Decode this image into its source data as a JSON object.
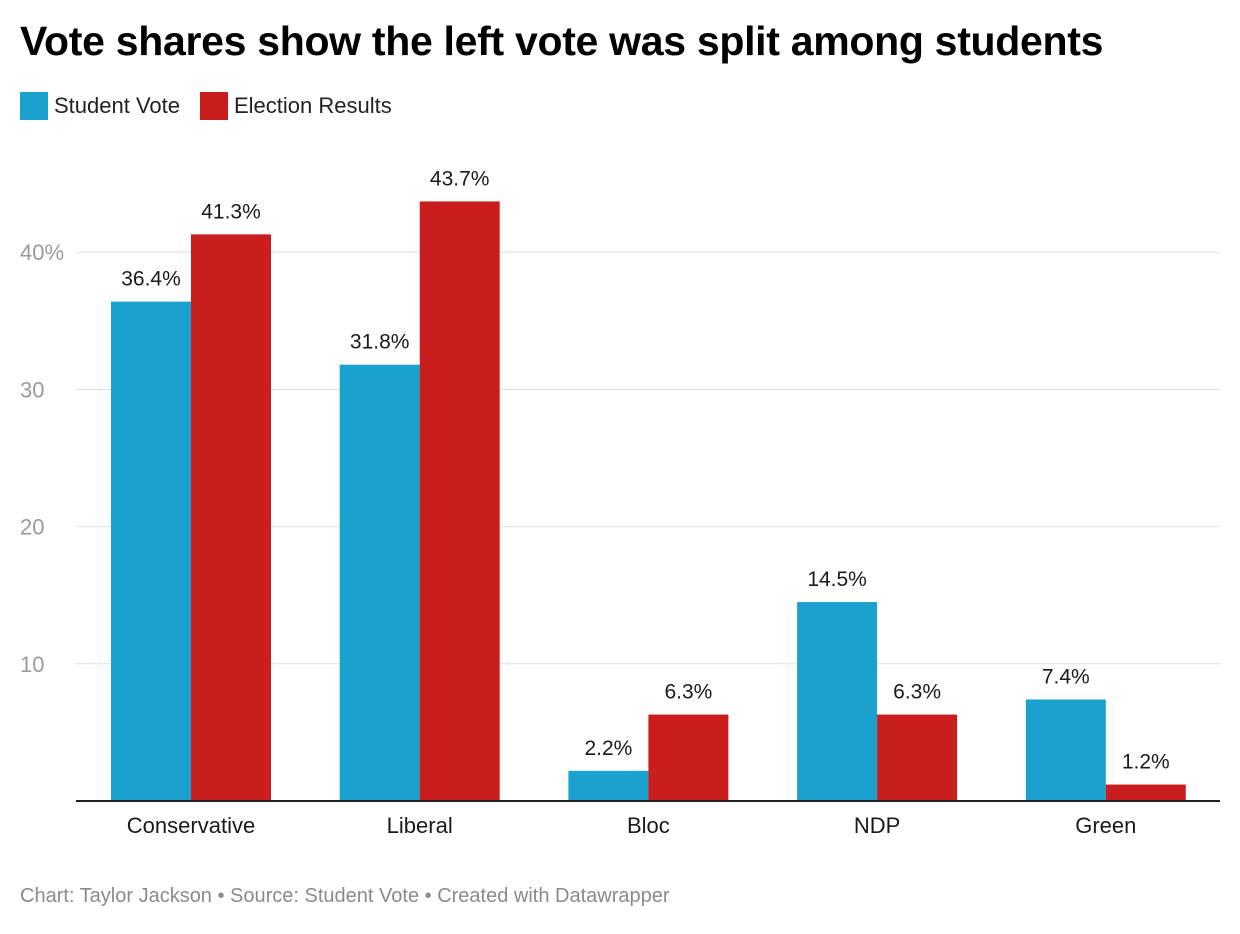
{
  "title": "Vote shares show the left vote was split among students",
  "footer": "Chart: Taylor Jackson • Source: Student Vote • Created with Datawrapper",
  "colors": {
    "student": "#1aa1cf",
    "election": "#c91d1e"
  },
  "chart_data": {
    "type": "bar",
    "title": "Vote shares show the left vote was split among students",
    "categories": [
      "Conservative",
      "Liberal",
      "Bloc",
      "NDP",
      "Green"
    ],
    "series": [
      {
        "name": "Student Vote",
        "values": [
          36.4,
          31.8,
          2.2,
          14.5,
          7.4
        ],
        "labels": [
          "36.4%",
          "31.8%",
          "2.2%",
          "14.5%",
          "7.4%"
        ]
      },
      {
        "name": "Election Results",
        "values": [
          41.3,
          43.7,
          6.3,
          6.3,
          1.2
        ],
        "labels": [
          "41.3%",
          "43.7%",
          "6.3%",
          "6.3%",
          "1.2%"
        ]
      }
    ],
    "yticks": [
      10,
      20,
      30,
      40
    ],
    "ytick_labels": [
      "10",
      "20",
      "30",
      "40%"
    ],
    "ylim": [
      0,
      45
    ],
    "grid": true,
    "legend": "top-left"
  }
}
